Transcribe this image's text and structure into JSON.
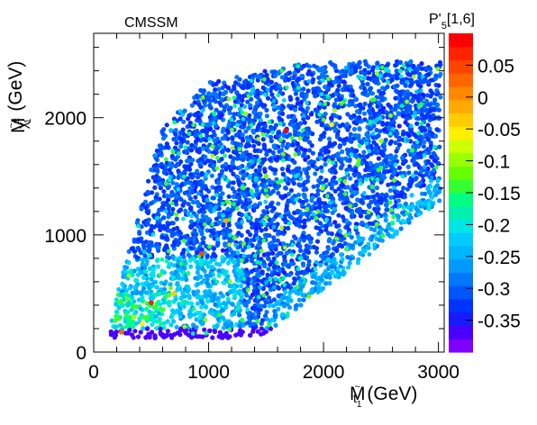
{
  "chart_data": {
    "type": "scatter",
    "title": "CMSSM",
    "xlabel": {
      "main": "M",
      "sub_tilde": "~",
      "sub_main": "t",
      "sub_index": "1",
      "unit": "(GeV)"
    },
    "ylabel": {
      "main": "M",
      "sub_tilde": "~",
      "sub_main": "χ",
      "sup": "±",
      "sub_index": "1",
      "unit": "(GeV)"
    },
    "xlim": [
      0,
      3050
    ],
    "ylim": [
      0,
      2720
    ],
    "xticks": [
      0,
      1000,
      2000,
      3000
    ],
    "yticks": [
      0,
      1000,
      2000
    ],
    "grid": false,
    "colorbar": {
      "title": "P'",
      "title_sub": "5",
      "title_tail": "[1,6]",
      "range": [
        -0.4,
        0.1
      ],
      "ticks": [
        0.05,
        0,
        -0.05,
        -0.1,
        -0.15,
        -0.2,
        -0.25,
        -0.3,
        -0.35
      ],
      "tick_labels": [
        "0.05",
        "0",
        "-0.05",
        "-0.1",
        "-0.15",
        "-0.2",
        "-0.25",
        "-0.3",
        "-0.35"
      ],
      "colors": [
        "#7f00ff",
        "#4a00ff",
        "#1a1aff",
        "#0033ff",
        "#0055ff",
        "#0077ff",
        "#0099ff",
        "#00b4ff",
        "#00ccff",
        "#00e5e5",
        "#00f0b0",
        "#00ff80",
        "#33ff33",
        "#66ff00",
        "#99ff00",
        "#ccff00",
        "#ffee00",
        "#ffcc00",
        "#ffaa00",
        "#ff8800",
        "#ff6600",
        "#ff4400",
        "#ff2200",
        "#ff0000"
      ]
    },
    "highlight_points": [
      {
        "x": 500,
        "y": 420,
        "z": 0.07
      },
      {
        "x": 940,
        "y": 840,
        "z": 0.05
      },
      {
        "x": 1670,
        "y": 1890,
        "z": 0.08
      },
      {
        "x": 240,
        "y": 170,
        "z": 0.02
      },
      {
        "x": 1150,
        "y": 1120,
        "z": -0.02
      },
      {
        "x": 2070,
        "y": 1940,
        "z": -0.05
      },
      {
        "x": 700,
        "y": 500,
        "z": -0.04
      },
      {
        "x": 1500,
        "y": 1500,
        "z": -0.12
      },
      {
        "x": 2500,
        "y": 1800,
        "z": -0.1
      },
      {
        "x": 2300,
        "y": 1600,
        "z": -0.14
      },
      {
        "x": 1800,
        "y": 800,
        "z": -0.18
      },
      {
        "x": 2600,
        "y": 1100,
        "z": -0.16
      },
      {
        "x": 1300,
        "y": 1400,
        "z": -0.13
      },
      {
        "x": 350,
        "y": 300,
        "z": -0.1
      },
      {
        "x": 420,
        "y": 240,
        "z": -0.06
      }
    ]
  }
}
